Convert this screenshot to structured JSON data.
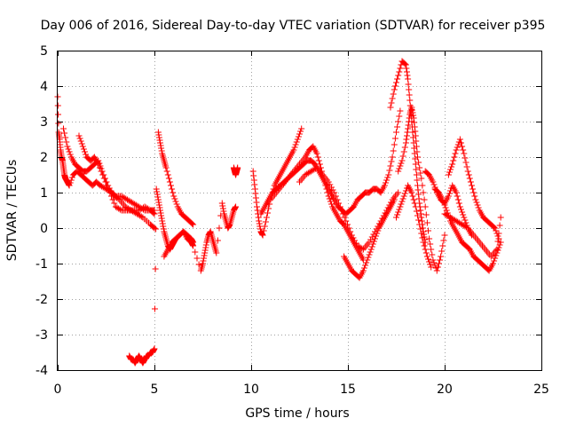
{
  "chart_data": {
    "type": "scatter",
    "title": "Day 006 of 2016, Sidereal Day-to-day VTEC variation (SDTVAR) for receiver p395",
    "xlabel": "GPS time / hours",
    "ylabel": "SDTVAR / TECUs",
    "xlim": [
      0,
      25
    ],
    "ylim": [
      -4,
      5
    ],
    "x_ticks": [
      "0",
      "5",
      "10",
      "15",
      "20",
      "25"
    ],
    "y_ticks": [
      "-4",
      "-3",
      "-2",
      "-1",
      "0",
      "1",
      "2",
      "3",
      "4",
      "5"
    ],
    "grid": true,
    "marker": "+",
    "series_color": "#ff0000",
    "series": [
      {
        "name": "SDTVAR",
        "x": [
          0.0,
          0.05,
          0.1,
          0.15,
          0.2,
          0.25,
          0.3,
          0.35,
          0.4,
          0.5,
          0.6,
          0.8,
          1.0,
          1.2,
          1.4,
          1.6,
          1.8,
          2.0,
          2.2,
          2.5,
          2.8,
          3.0,
          3.3,
          3.6,
          3.9,
          4.2,
          4.5,
          4.8,
          5.0,
          0.3,
          0.5,
          0.7,
          0.9,
          1.1,
          1.3,
          1.5,
          1.7,
          1.9,
          2.1,
          2.3,
          2.6,
          2.9,
          3.2,
          3.5,
          3.8,
          4.1,
          4.4,
          4.8,
          5.0,
          1.1,
          1.3,
          1.5,
          1.7,
          1.9,
          2.1,
          2.4,
          2.7,
          3.0,
          3.3,
          3.6,
          3.9,
          4.2,
          4.5,
          4.8,
          5.0,
          3.7,
          3.8,
          3.9,
          4.0,
          4.1,
          4.2,
          4.3,
          4.4,
          4.5,
          4.6,
          4.7,
          4.8,
          4.9,
          5.0,
          5.1,
          5.2,
          5.3,
          5.4,
          5.5,
          5.6,
          5.7,
          5.8,
          5.9,
          6.0,
          6.1,
          6.3,
          6.5,
          6.7,
          6.9,
          7.0,
          5.2,
          5.3,
          5.4,
          5.5,
          5.6,
          5.8,
          6.0,
          6.2,
          6.4,
          6.6,
          6.8,
          7.0,
          5.5,
          5.7,
          5.9,
          6.1,
          6.3,
          6.5,
          6.7,
          6.9,
          7.0,
          7.4,
          7.5,
          7.6,
          7.7,
          7.8,
          7.9,
          8.0,
          8.1,
          8.2,
          8.5,
          8.6,
          8.7,
          8.8,
          8.9,
          9.0,
          9.1,
          9.2,
          9.1,
          9.15,
          9.2,
          9.25,
          9.3,
          10.1,
          10.2,
          10.3,
          10.4,
          10.5,
          10.6,
          10.8,
          11.0,
          11.2,
          11.4,
          11.6,
          11.8,
          12.0,
          12.2,
          12.4,
          12.6,
          10.5,
          10.7,
          10.9,
          11.1,
          11.3,
          11.5,
          11.7,
          11.9,
          12.1,
          12.3,
          12.5,
          12.7,
          12.9,
          13.1,
          13.3,
          13.5,
          13.7,
          13.9,
          14.1,
          14.3,
          14.5,
          14.7,
          14.9,
          15.1,
          15.3,
          15.5,
          15.7,
          15.9,
          16.1,
          16.3,
          16.5,
          16.7,
          16.9,
          17.1,
          17.3,
          17.5,
          17.7,
          11.0,
          11.3,
          11.6,
          11.9,
          12.2,
          12.5,
          12.8,
          13.0,
          13.2,
          13.4,
          13.6,
          13.8,
          14.0,
          14.2,
          14.4,
          14.6,
          14.8,
          15.0,
          15.2,
          15.4,
          15.6,
          15.8,
          12.5,
          12.8,
          13.1,
          13.4,
          13.7,
          14.0,
          14.3,
          14.6,
          14.9,
          15.2,
          15.5,
          15.8,
          16.1,
          16.4,
          16.7,
          17.0,
          17.3,
          17.6,
          14.8,
          15.0,
          15.2,
          15.4,
          15.6,
          15.8,
          16.0,
          16.2,
          16.4,
          16.6,
          16.8,
          17.0,
          17.2,
          17.4,
          17.2,
          17.4,
          17.6,
          17.8,
          18.0,
          18.1,
          18.2,
          18.3,
          18.4,
          18.5,
          18.6,
          18.7,
          18.8,
          18.9,
          19.0,
          17.6,
          17.8,
          18.0,
          18.1,
          18.2,
          18.3,
          18.4,
          18.5,
          18.6,
          18.8,
          19.0,
          19.2,
          19.4,
          19.6,
          19.8,
          20.0,
          17.5,
          17.7,
          17.9,
          18.1,
          18.3,
          18.5,
          18.7,
          18.9,
          19.1,
          19.3,
          19.0,
          19.2,
          19.4,
          19.6,
          19.8,
          20.0,
          20.2,
          20.4,
          20.6,
          20.8,
          21.0,
          21.2,
          21.4,
          19.5,
          19.7,
          19.9,
          20.1,
          20.3,
          20.5,
          20.7,
          20.9,
          21.1,
          21.3,
          21.5,
          21.7,
          21.9,
          22.1,
          22.3,
          22.5,
          22.7,
          22.9,
          20.0,
          20.3,
          20.6,
          20.9,
          21.2,
          21.5,
          21.8,
          22.1,
          22.4,
          22.7,
          22.9,
          20.2,
          20.4,
          20.6,
          20.8,
          21.0,
          21.2,
          21.4,
          21.6,
          21.8,
          22.0,
          22.2,
          22.4,
          22.6,
          22.8
        ],
        "y": [
          3.7,
          2.7,
          2.5,
          2.2,
          2.0,
          1.9,
          1.7,
          1.5,
          1.4,
          1.3,
          1.2,
          1.5,
          1.6,
          1.5,
          1.4,
          1.3,
          1.2,
          1.3,
          1.2,
          1.1,
          1.0,
          0.9,
          0.9,
          0.8,
          0.7,
          0.6,
          0.5,
          0.5,
          0.4,
          2.8,
          2.3,
          2.0,
          1.8,
          1.7,
          1.6,
          1.6,
          1.7,
          1.8,
          1.9,
          1.6,
          1.2,
          0.9,
          0.8,
          0.6,
          0.5,
          0.4,
          0.3,
          0.1,
          0.0,
          2.6,
          2.3,
          2.0,
          1.9,
          2.0,
          1.8,
          1.4,
          1.0,
          0.6,
          0.5,
          0.5,
          0.5,
          0.5,
          0.6,
          0.5,
          0.5,
          -3.6,
          -3.7,
          -3.7,
          -3.8,
          -3.7,
          -3.6,
          -3.7,
          -3.8,
          -3.7,
          -3.6,
          -3.6,
          -3.5,
          -3.5,
          -3.4,
          1.1,
          0.8,
          0.5,
          0.2,
          -0.1,
          -0.3,
          -0.5,
          -0.6,
          -0.5,
          -0.4,
          -0.3,
          -0.2,
          -0.1,
          -0.2,
          -0.3,
          -0.4,
          2.7,
          2.4,
          2.1,
          1.9,
          1.7,
          1.3,
          0.9,
          0.6,
          0.4,
          0.3,
          0.2,
          0.1,
          -0.8,
          -0.6,
          -0.4,
          -0.3,
          -0.2,
          -0.1,
          -0.3,
          -0.4,
          -0.5,
          -1.2,
          -1.0,
          -0.7,
          -0.4,
          -0.2,
          -0.1,
          -0.3,
          -0.5,
          -0.7,
          0.7,
          0.4,
          0.2,
          0.0,
          0.1,
          0.3,
          0.5,
          0.6,
          1.7,
          1.6,
          1.5,
          1.6,
          1.7,
          1.6,
          1.1,
          0.6,
          0.2,
          -0.1,
          -0.2,
          0.3,
          0.8,
          1.2,
          1.4,
          1.6,
          1.8,
          2.0,
          2.2,
          2.5,
          2.8,
          0.4,
          0.6,
          0.8,
          1.0,
          1.1,
          1.2,
          1.3,
          1.4,
          1.5,
          1.6,
          1.7,
          1.8,
          1.9,
          1.9,
          1.8,
          1.6,
          1.4,
          1.2,
          1.0,
          0.8,
          0.6,
          0.5,
          0.4,
          0.5,
          0.6,
          0.8,
          0.9,
          1.0,
          1.0,
          1.1,
          1.1,
          1.0,
          1.2,
          1.5,
          2.0,
          2.7,
          3.3,
          0.8,
          1.0,
          1.2,
          1.4,
          1.6,
          1.8,
          2.0,
          2.2,
          2.3,
          2.1,
          1.7,
          1.3,
          0.9,
          0.6,
          0.4,
          0.2,
          0.1,
          -0.1,
          -0.3,
          -0.5,
          -0.7,
          -0.9,
          1.3,
          1.5,
          1.6,
          1.7,
          1.5,
          1.3,
          1.0,
          0.6,
          0.2,
          -0.2,
          -0.5,
          -0.6,
          -0.4,
          -0.1,
          0.2,
          0.5,
          0.8,
          1.0,
          -0.8,
          -1.0,
          -1.2,
          -1.3,
          -1.4,
          -1.2,
          -0.9,
          -0.6,
          -0.3,
          0.0,
          0.2,
          0.4,
          0.6,
          0.8,
          3.4,
          3.9,
          4.3,
          4.7,
          4.6,
          4.2,
          3.6,
          3.0,
          2.4,
          1.8,
          1.2,
          0.7,
          0.3,
          -0.1,
          -0.4,
          1.6,
          1.9,
          2.4,
          2.8,
          3.2,
          3.4,
          3.1,
          2.6,
          2.0,
          1.4,
          0.6,
          -0.3,
          -0.9,
          -1.2,
          -0.8,
          -0.2,
          0.3,
          0.6,
          0.9,
          1.2,
          1.0,
          0.6,
          0.1,
          -0.4,
          -0.8,
          -1.1,
          1.6,
          1.5,
          1.3,
          1.0,
          0.8,
          0.7,
          0.9,
          1.2,
          1.0,
          0.6,
          0.3,
          0.0,
          -0.2,
          1.1,
          1.0,
          0.8,
          0.5,
          0.2,
          0.0,
          -0.2,
          -0.4,
          -0.5,
          -0.6,
          -0.8,
          -0.9,
          -1.0,
          -1.1,
          -1.2,
          -1.0,
          -0.7,
          -0.4,
          0.4,
          0.3,
          0.2,
          0.1,
          0.0,
          -0.2,
          -0.4,
          -0.6,
          -0.8,
          -0.6,
          0.3,
          1.5,
          1.8,
          2.2,
          2.5,
          2.1,
          1.6,
          1.2,
          0.8,
          0.5,
          0.3,
          0.2,
          0.1,
          0.0,
          -0.3
        ]
      }
    ]
  }
}
